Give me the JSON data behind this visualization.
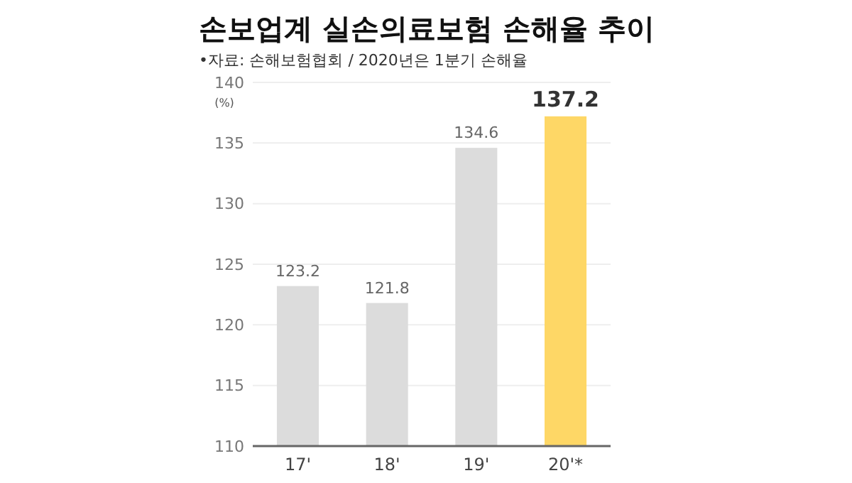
{
  "chart_data": {
    "type": "bar",
    "title": "손보업계 실손의료보험 손해율 추이",
    "subtitle": "•자료: 손해보험협회 / 2020년은 1분기 손해율",
    "ylabel": "(%)",
    "categories": [
      "17'",
      "18'",
      "19'",
      "20'*"
    ],
    "values": [
      123.2,
      121.8,
      134.6,
      137.2
    ],
    "colors": [
      "#dcdcdc",
      "#dcdcdc",
      "#dcdcdc",
      "#fed766"
    ],
    "ylim": [
      110,
      140
    ],
    "yticks": [
      110,
      115,
      120,
      125,
      130,
      135,
      140
    ],
    "grid": "y",
    "data_labels": true
  }
}
